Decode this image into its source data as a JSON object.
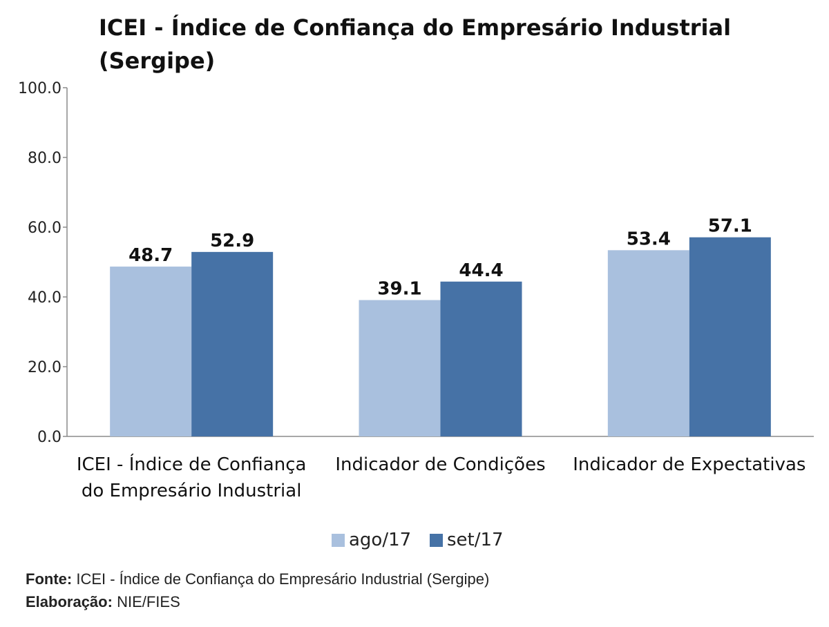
{
  "chart_data": {
    "type": "bar",
    "title": "ICEI - Índice de Confiança do Empresário Industrial (Sergipe)",
    "title_lines": [
      "ICEI - Índice de Confiança do Empresário Industrial",
      "(Sergipe)"
    ],
    "categories": [
      "ICEI - Índice de Confiança do Empresário Industrial",
      "Indicador de Condições",
      "Indicador de Expectativas"
    ],
    "category_lines": [
      [
        "ICEI - Índice de Confiança",
        "do Empresário Industrial"
      ],
      [
        "Indicador de Condições"
      ],
      [
        "Indicador de Expectativas"
      ]
    ],
    "series": [
      {
        "name": "ago/17",
        "values": [
          48.7,
          39.1,
          53.4
        ],
        "color": "#a9c0de"
      },
      {
        "name": "set/17",
        "values": [
          52.9,
          44.4,
          57.1
        ],
        "color": "#4672a6"
      }
    ],
    "ylim": [
      0,
      100
    ],
    "yticks": [
      "0.0",
      "20.0",
      "40.0",
      "60.0",
      "80.0",
      "100.0"
    ],
    "grid": false,
    "legend_position": "bottom-center",
    "xlabel": "",
    "ylabel": ""
  },
  "footer": {
    "source_label": "Fonte:",
    "source_text": "ICEI - Índice de Confiança do Empresário Industrial (Sergipe)",
    "credit_label": "Elaboração:",
    "credit_text": "NIE/FIES"
  }
}
